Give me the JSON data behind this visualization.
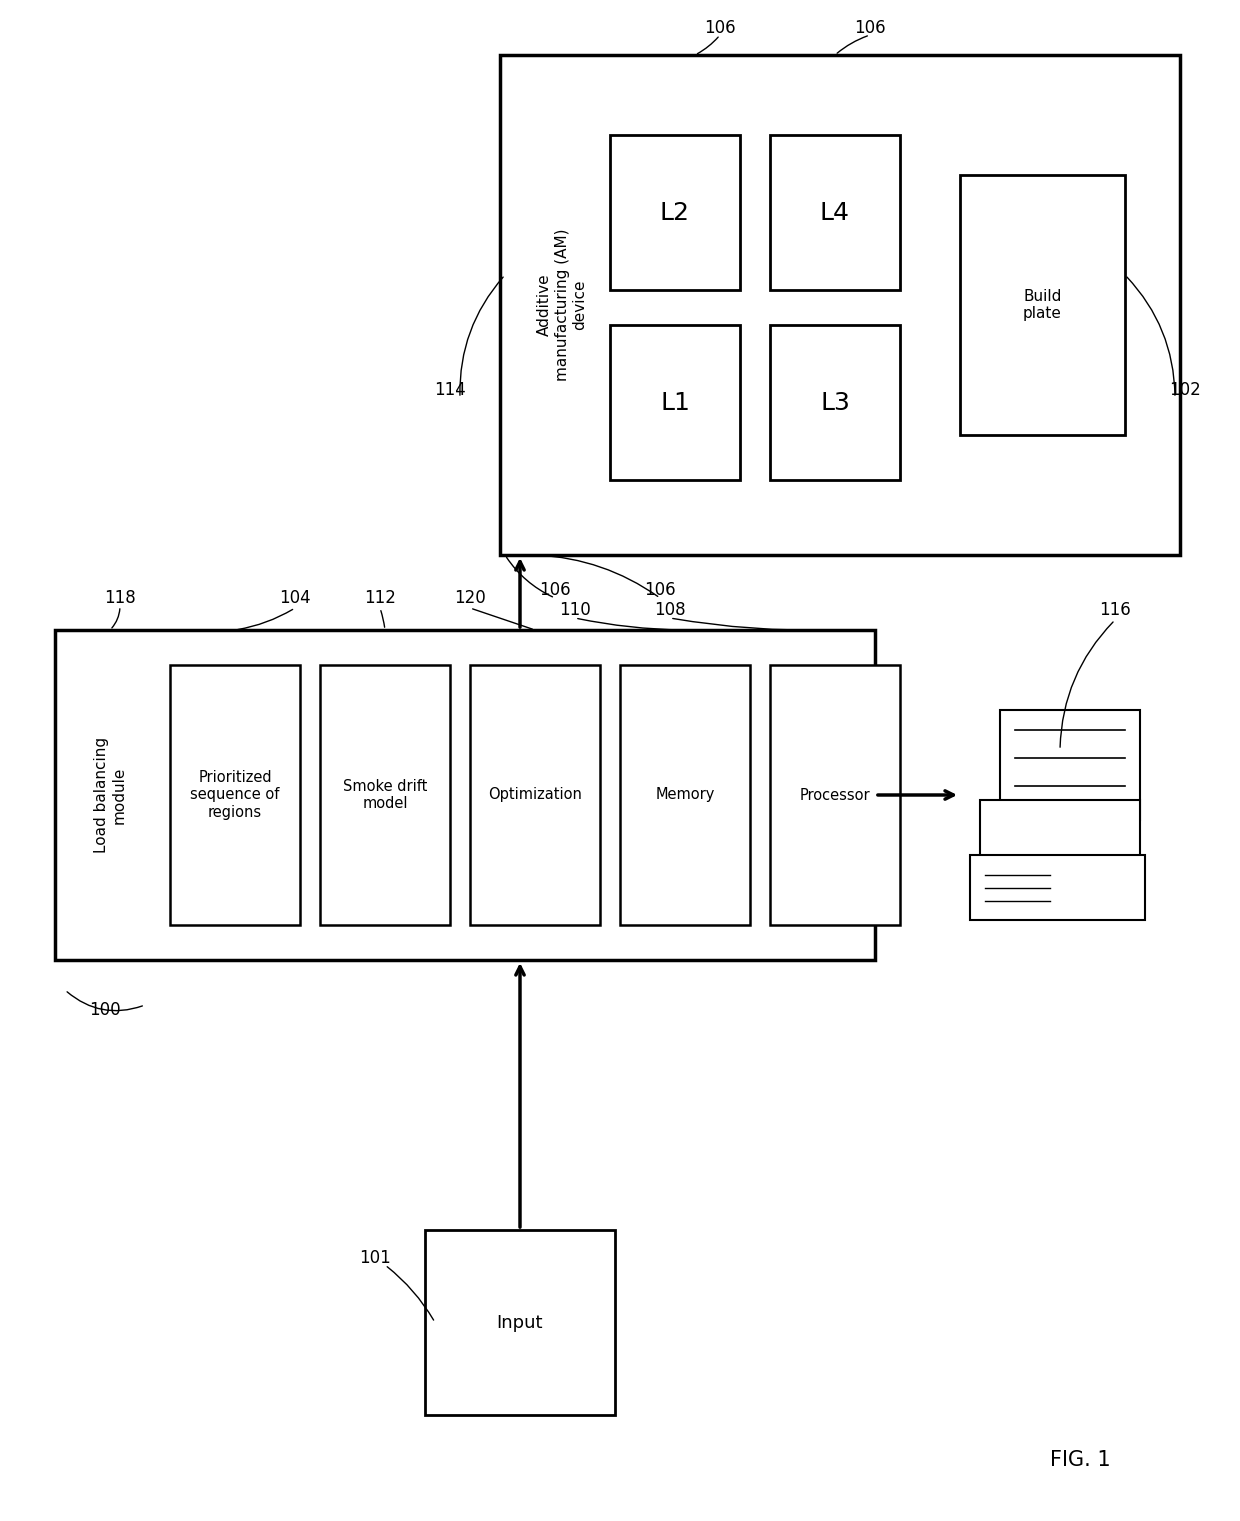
{
  "bg_color": "#ffffff",
  "fig_label": "FIG. 1",
  "ref_100": "100",
  "ref_101": "101",
  "ref_102": "102",
  "ref_104": "104",
  "ref_106": "106",
  "ref_108": "108",
  "ref_110": "110",
  "ref_112": "112",
  "ref_114": "114",
  "ref_116": "116",
  "ref_118": "118",
  "ref_120": "120",
  "input_label": "Input",
  "lbm_label": "Load balancing\nmodule",
  "box104_label": "Prioritized\nsequence of\nregions",
  "box112_label": "Smoke drift\nmodel",
  "box120_label": "Optimization",
  "box110_label": "Memory",
  "box108_label": "Processor",
  "am_device_label": "Additive\nmanufacturing (AM)\ndevice",
  "build_plate_label": "Build\nplate",
  "l1_label": "L1",
  "l2_label": "L2",
  "l3_label": "L3",
  "l4_label": "L4"
}
